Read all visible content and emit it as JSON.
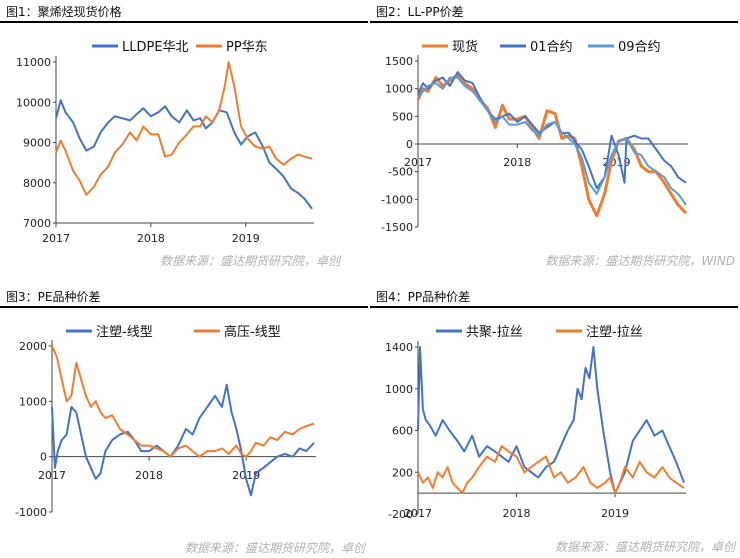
{
  "colors": {
    "blue": "#4472C4",
    "orange": "#ED7D31",
    "lightblue": "#5B9BD5",
    "rule": "#000000",
    "source": "#b0b0b0"
  },
  "chart_data": [
    {
      "type": "line",
      "title": "图1：聚烯烃现货价格",
      "source": "数据来源：盛达期货研究院，卓创",
      "xlim": [
        2017,
        2019.72
      ],
      "xticks": [
        "2017",
        "2018",
        "2019"
      ],
      "ylim": [
        7000,
        11000
      ],
      "yticks": [
        7000,
        8000,
        9000,
        10000,
        11000
      ],
      "legend_position": "top",
      "series": [
        {
          "name": "LLDPE华北",
          "color": "#4472C4",
          "x": [
            2017.0,
            2017.05,
            2017.1,
            2017.18,
            2017.25,
            2017.32,
            2017.4,
            2017.47,
            2017.55,
            2017.62,
            2017.7,
            2017.78,
            2017.85,
            2017.92,
            2018.0,
            2018.08,
            2018.15,
            2018.22,
            2018.3,
            2018.38,
            2018.45,
            2018.52,
            2018.58,
            2018.65,
            2018.72,
            2018.8,
            2018.88,
            2018.95,
            2019.02,
            2019.1,
            2019.18,
            2019.25,
            2019.32,
            2019.4,
            2019.48,
            2019.55,
            2019.62,
            2019.7
          ],
          "y": [
            9600,
            10050,
            9750,
            9500,
            9100,
            8800,
            8900,
            9250,
            9500,
            9650,
            9600,
            9550,
            9700,
            9850,
            9650,
            9750,
            9900,
            9650,
            9500,
            9800,
            9550,
            9600,
            9350,
            9500,
            9800,
            9750,
            9250,
            8950,
            9150,
            9250,
            8900,
            8500,
            8350,
            8150,
            7850,
            7750,
            7600,
            7350
          ]
        },
        {
          "name": "PP华东",
          "color": "#ED7D31",
          "x": [
            2017.0,
            2017.05,
            2017.1,
            2017.18,
            2017.25,
            2017.32,
            2017.4,
            2017.47,
            2017.55,
            2017.62,
            2017.7,
            2017.78,
            2017.85,
            2017.92,
            2018.0,
            2018.08,
            2018.15,
            2018.22,
            2018.3,
            2018.38,
            2018.45,
            2018.52,
            2018.58,
            2018.65,
            2018.72,
            2018.78,
            2018.82,
            2018.88,
            2018.95,
            2019.02,
            2019.1,
            2019.18,
            2019.25,
            2019.32,
            2019.4,
            2019.48,
            2019.55,
            2019.62,
            2019.7
          ],
          "y": [
            8750,
            9050,
            8800,
            8300,
            8050,
            7700,
            7900,
            8200,
            8400,
            8750,
            8950,
            9250,
            9050,
            9400,
            9200,
            9200,
            8650,
            8700,
            9000,
            9200,
            9400,
            9400,
            9650,
            9500,
            9800,
            10400,
            11000,
            10400,
            9400,
            9100,
            8900,
            8850,
            8900,
            8600,
            8450,
            8600,
            8700,
            8650,
            8600
          ]
        }
      ]
    },
    {
      "type": "line",
      "title": "图2：LL-PP价差",
      "source": "数据来源：盛达期货研究院，WIND",
      "xlim": [
        2017,
        2019.72
      ],
      "xticks": [
        "2017",
        "2018",
        "2019"
      ],
      "ylim": [
        -1500,
        1500
      ],
      "yticks": [
        -1500,
        -1000,
        -500,
        0,
        500,
        1000,
        1500
      ],
      "legend_position": "top",
      "series": [
        {
          "name": "现货",
          "color": "#ED7D31",
          "x": [
            2017.0,
            2017.05,
            2017.1,
            2017.18,
            2017.25,
            2017.32,
            2017.4,
            2017.47,
            2017.55,
            2017.62,
            2017.7,
            2017.78,
            2017.85,
            2017.92,
            2018.0,
            2018.08,
            2018.15,
            2018.22,
            2018.3,
            2018.38,
            2018.45,
            2018.52,
            2018.58,
            2018.65,
            2018.72,
            2018.8,
            2018.88,
            2018.95,
            2019.02,
            2019.1,
            2019.18,
            2019.25,
            2019.32,
            2019.4,
            2019.48,
            2019.55,
            2019.62,
            2019.7
          ],
          "y": [
            800,
            1000,
            950,
            1200,
            1050,
            1150,
            1250,
            1100,
            1000,
            800,
            650,
            300,
            700,
            450,
            450,
            500,
            300,
            100,
            600,
            550,
            100,
            150,
            100,
            -400,
            -1000,
            -1300,
            -900,
            -300,
            50,
            100,
            -100,
            -400,
            -500,
            -500,
            -700,
            -900,
            -1100,
            -1250
          ]
        },
        {
          "name": "01合约",
          "color": "#4472C4",
          "x": [
            2017.0,
            2017.05,
            2017.1,
            2017.18,
            2017.25,
            2017.32,
            2017.4,
            2017.47,
            2017.55,
            2017.62,
            2017.7,
            2017.78,
            2017.85,
            2017.92,
            2018.0,
            2018.08,
            2018.15,
            2018.22,
            2018.3,
            2018.38,
            2018.45,
            2018.52,
            2018.58,
            2018.65,
            2018.72,
            2018.8,
            2018.88,
            2018.95,
            2019.02,
            2019.08,
            2019.1,
            2019.18,
            2019.25,
            2019.32,
            2019.4,
            2019.48,
            2019.55,
            2019.62,
            2019.7
          ],
          "y": [
            900,
            1100,
            1000,
            1150,
            1200,
            1050,
            1300,
            1150,
            1100,
            850,
            600,
            450,
            500,
            550,
            400,
            500,
            350,
            200,
            300,
            400,
            200,
            200,
            50,
            -100,
            -400,
            -800,
            -600,
            150,
            -200,
            -700,
            100,
            150,
            100,
            100,
            -100,
            -300,
            -400,
            -600,
            -700
          ]
        },
        {
          "name": "09合约",
          "color": "#5B9BD5",
          "x": [
            2017.0,
            2017.05,
            2017.1,
            2017.18,
            2017.25,
            2017.32,
            2017.4,
            2017.47,
            2017.55,
            2017.62,
            2017.7,
            2017.78,
            2017.85,
            2017.92,
            2018.0,
            2018.08,
            2018.15,
            2018.22,
            2018.3,
            2018.38,
            2018.45,
            2018.52,
            2018.58,
            2018.65,
            2018.72,
            2018.8,
            2018.88,
            2018.95,
            2019.02,
            2019.1,
            2019.18,
            2019.25,
            2019.32,
            2019.4,
            2019.48,
            2019.55,
            2019.62,
            2019.7
          ],
          "y": [
            850,
            950,
            1050,
            1100,
            1000,
            1200,
            1200,
            1050,
            950,
            800,
            600,
            400,
            500,
            350,
            350,
            400,
            250,
            150,
            350,
            400,
            200,
            100,
            0,
            -250,
            -700,
            -900,
            -600,
            -200,
            50,
            100,
            -150,
            -200,
            -400,
            -500,
            -600,
            -800,
            -900,
            -1100
          ]
        }
      ]
    },
    {
      "type": "line",
      "title": "图3：PE品种价差",
      "source": "数据来源：盛达期货研究院，卓创",
      "xlim": [
        2017,
        2019.72
      ],
      "xticks": [
        "2017",
        "2018",
        "2019"
      ],
      "ylim": [
        -1000,
        2000
      ],
      "yticks": [
        -1000,
        0,
        1000,
        2000
      ],
      "legend_position": "top",
      "series": [
        {
          "name": "注塑-线型",
          "color": "#4472C4",
          "x": [
            2017.0,
            2017.03,
            2017.06,
            2017.1,
            2017.15,
            2017.2,
            2017.25,
            2017.3,
            2017.35,
            2017.4,
            2017.45,
            2017.5,
            2017.55,
            2017.62,
            2017.7,
            2017.78,
            2017.85,
            2017.92,
            2018.0,
            2018.08,
            2018.15,
            2018.22,
            2018.3,
            2018.38,
            2018.45,
            2018.52,
            2018.6,
            2018.68,
            2018.75,
            2018.8,
            2018.85,
            2018.9,
            2018.95,
            2019.0,
            2019.05,
            2019.1,
            2019.18,
            2019.25,
            2019.32,
            2019.4,
            2019.48,
            2019.55,
            2019.62,
            2019.7
          ],
          "y": [
            900,
            -200,
            100,
            300,
            400,
            900,
            800,
            400,
            0,
            -200,
            -400,
            -300,
            100,
            300,
            400,
            450,
            300,
            100,
            100,
            200,
            100,
            0,
            200,
            500,
            400,
            700,
            900,
            1100,
            900,
            1300,
            800,
            500,
            100,
            -400,
            -700,
            -300,
            -200,
            -100,
            0,
            50,
            0,
            150,
            100,
            250
          ]
        },
        {
          "name": "高压-线型",
          "color": "#ED7D31",
          "x": [
            2017.0,
            2017.05,
            2017.1,
            2017.15,
            2017.2,
            2017.25,
            2017.3,
            2017.35,
            2017.4,
            2017.45,
            2017.5,
            2017.55,
            2017.62,
            2017.7,
            2017.78,
            2017.85,
            2017.92,
            2018.0,
            2018.08,
            2018.15,
            2018.22,
            2018.3,
            2018.38,
            2018.45,
            2018.52,
            2018.6,
            2018.68,
            2018.75,
            2018.82,
            2018.9,
            2018.95,
            2019.0,
            2019.05,
            2019.1,
            2019.18,
            2019.25,
            2019.32,
            2019.4,
            2019.48,
            2019.55,
            2019.62,
            2019.7
          ],
          "y": [
            2000,
            1800,
            1400,
            1000,
            1100,
            1700,
            1400,
            1100,
            900,
            1000,
            800,
            700,
            750,
            500,
            400,
            300,
            200,
            200,
            150,
            100,
            0,
            150,
            200,
            100,
            0,
            100,
            100,
            150,
            50,
            200,
            50,
            0,
            100,
            250,
            200,
            350,
            300,
            450,
            400,
            500,
            550,
            600
          ]
        }
      ]
    },
    {
      "type": "line",
      "title": "图4：PP品种价差",
      "source": "数据来源：盛达期货研究院，卓创",
      "xlim": [
        2017,
        2019.72
      ],
      "xticks": [
        "2017",
        "2018",
        "2019"
      ],
      "ylim": [
        -200,
        1400
      ],
      "yticks": [
        -200,
        200,
        600,
        1000,
        1400
      ],
      "legend_position": "top",
      "series": [
        {
          "name": "共聚-拉丝",
          "color": "#4472C4",
          "x": [
            2017.0,
            2017.02,
            2017.05,
            2017.08,
            2017.12,
            2017.18,
            2017.25,
            2017.32,
            2017.4,
            2017.47,
            2017.55,
            2017.62,
            2017.7,
            2017.78,
            2017.85,
            2017.92,
            2018.0,
            2018.08,
            2018.15,
            2018.22,
            2018.3,
            2018.38,
            2018.45,
            2018.52,
            2018.58,
            2018.62,
            2018.66,
            2018.7,
            2018.74,
            2018.78,
            2018.82,
            2018.88,
            2018.95,
            2019.0,
            2019.05,
            2019.1,
            2019.18,
            2019.25,
            2019.32,
            2019.4,
            2019.48,
            2019.55,
            2019.62,
            2019.7
          ],
          "y": [
            600,
            1400,
            800,
            700,
            650,
            550,
            700,
            600,
            500,
            400,
            550,
            350,
            450,
            400,
            350,
            300,
            450,
            250,
            200,
            150,
            250,
            300,
            450,
            600,
            700,
            1000,
            900,
            1200,
            1100,
            1400,
            1000,
            600,
            200,
            0,
            100,
            200,
            500,
            600,
            700,
            550,
            600,
            450,
            300,
            100
          ]
        },
        {
          "name": "注塑-拉丝",
          "color": "#ED7D31",
          "x": [
            2017.0,
            2017.05,
            2017.1,
            2017.15,
            2017.2,
            2017.25,
            2017.3,
            2017.35,
            2017.4,
            2017.45,
            2017.5,
            2017.55,
            2017.62,
            2017.7,
            2017.78,
            2017.85,
            2017.92,
            2018.0,
            2018.08,
            2018.15,
            2018.22,
            2018.3,
            2018.38,
            2018.45,
            2018.52,
            2018.6,
            2018.68,
            2018.75,
            2018.82,
            2018.9,
            2018.95,
            2019.0,
            2019.05,
            2019.1,
            2019.18,
            2019.25,
            2019.32,
            2019.4,
            2019.48,
            2019.55,
            2019.62,
            2019.7
          ],
          "y": [
            200,
            100,
            150,
            50,
            200,
            150,
            250,
            100,
            50,
            0,
            100,
            150,
            250,
            350,
            300,
            450,
            400,
            350,
            200,
            250,
            300,
            350,
            150,
            200,
            100,
            150,
            250,
            100,
            50,
            100,
            150,
            0,
            100,
            250,
            150,
            300,
            200,
            150,
            250,
            150,
            100,
            50
          ]
        }
      ]
    }
  ]
}
